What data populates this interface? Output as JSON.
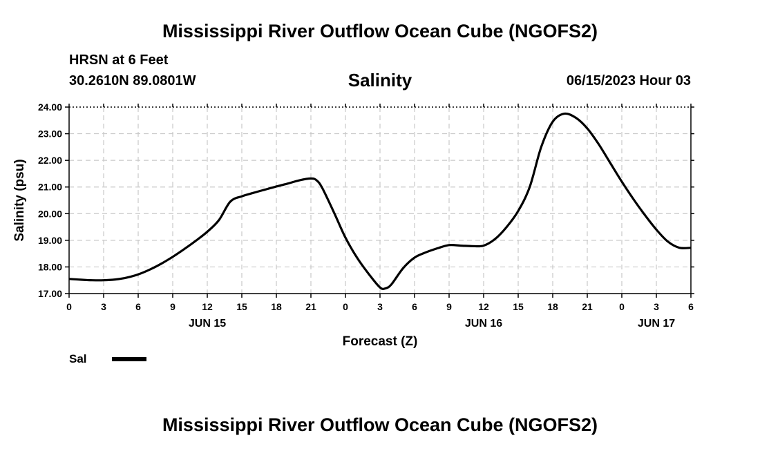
{
  "header": {
    "title": "Mississippi River Outflow Ocean Cube (NGOFS2)",
    "station": "HRSN at 6 Feet",
    "coordinates": "30.2610N  89.0801W",
    "plot_title": "Salinity",
    "timestamp": "06/15/2023 Hour 03"
  },
  "legend": {
    "label": "Sal"
  },
  "footer": {
    "title": "Mississippi River Outflow Ocean Cube (NGOFS2)"
  },
  "chart_data": {
    "type": "line",
    "title": "Salinity",
    "xlabel": "Forecast (Z)",
    "ylabel": "Salinity (psu)",
    "xlim": [
      0,
      54
    ],
    "ylim": [
      17.0,
      24.0
    ],
    "y_ticks": [
      17.0,
      18.0,
      19.0,
      20.0,
      21.0,
      22.0,
      23.0,
      24.0
    ],
    "y_tick_labels": [
      "17.00",
      "18.00",
      "19.00",
      "20.00",
      "21.00",
      "22.00",
      "23.00",
      "24.00"
    ],
    "x_ticks": [
      0,
      3,
      6,
      9,
      12,
      15,
      18,
      21,
      24,
      27,
      30,
      33,
      36,
      39,
      42,
      45,
      48,
      51,
      54
    ],
    "x_tick_labels": [
      "0",
      "3",
      "6",
      "9",
      "12",
      "15",
      "18",
      "21",
      "0",
      "3",
      "6",
      "9",
      "12",
      "15",
      "18",
      "21",
      "0",
      "3",
      "6"
    ],
    "day_labels": [
      {
        "x": 12,
        "label": "JUN 15"
      },
      {
        "x": 36,
        "label": "JUN 16"
      },
      {
        "x": 51,
        "label": "JUN 17"
      }
    ],
    "grid": true,
    "series": [
      {
        "name": "Sal",
        "x": [
          0,
          1,
          2,
          3,
          4,
          5,
          6,
          7,
          8,
          9,
          10,
          11,
          12,
          13,
          14,
          15,
          16,
          17,
          18,
          19,
          20,
          21,
          21.5,
          22,
          23,
          24,
          25,
          26,
          27,
          27.5,
          28,
          29,
          30,
          31,
          32,
          33,
          34,
          35,
          36,
          37,
          38,
          39,
          40,
          41,
          42,
          43,
          44,
          45,
          46,
          47,
          48,
          49,
          50,
          51,
          52,
          53,
          54
        ],
        "values": [
          17.55,
          17.52,
          17.5,
          17.5,
          17.53,
          17.6,
          17.72,
          17.9,
          18.12,
          18.38,
          18.67,
          18.98,
          19.32,
          19.75,
          20.45,
          20.65,
          20.78,
          20.9,
          21.02,
          21.13,
          21.25,
          21.32,
          21.25,
          20.95,
          20.05,
          19.1,
          18.35,
          17.75,
          17.23,
          17.2,
          17.35,
          17.95,
          18.35,
          18.55,
          18.7,
          18.82,
          18.8,
          18.78,
          18.8,
          19.05,
          19.5,
          20.1,
          21.0,
          22.5,
          23.45,
          23.75,
          23.6,
          23.2,
          22.6,
          21.9,
          21.2,
          20.55,
          19.95,
          19.4,
          18.95,
          18.72,
          18.72
        ]
      }
    ]
  }
}
